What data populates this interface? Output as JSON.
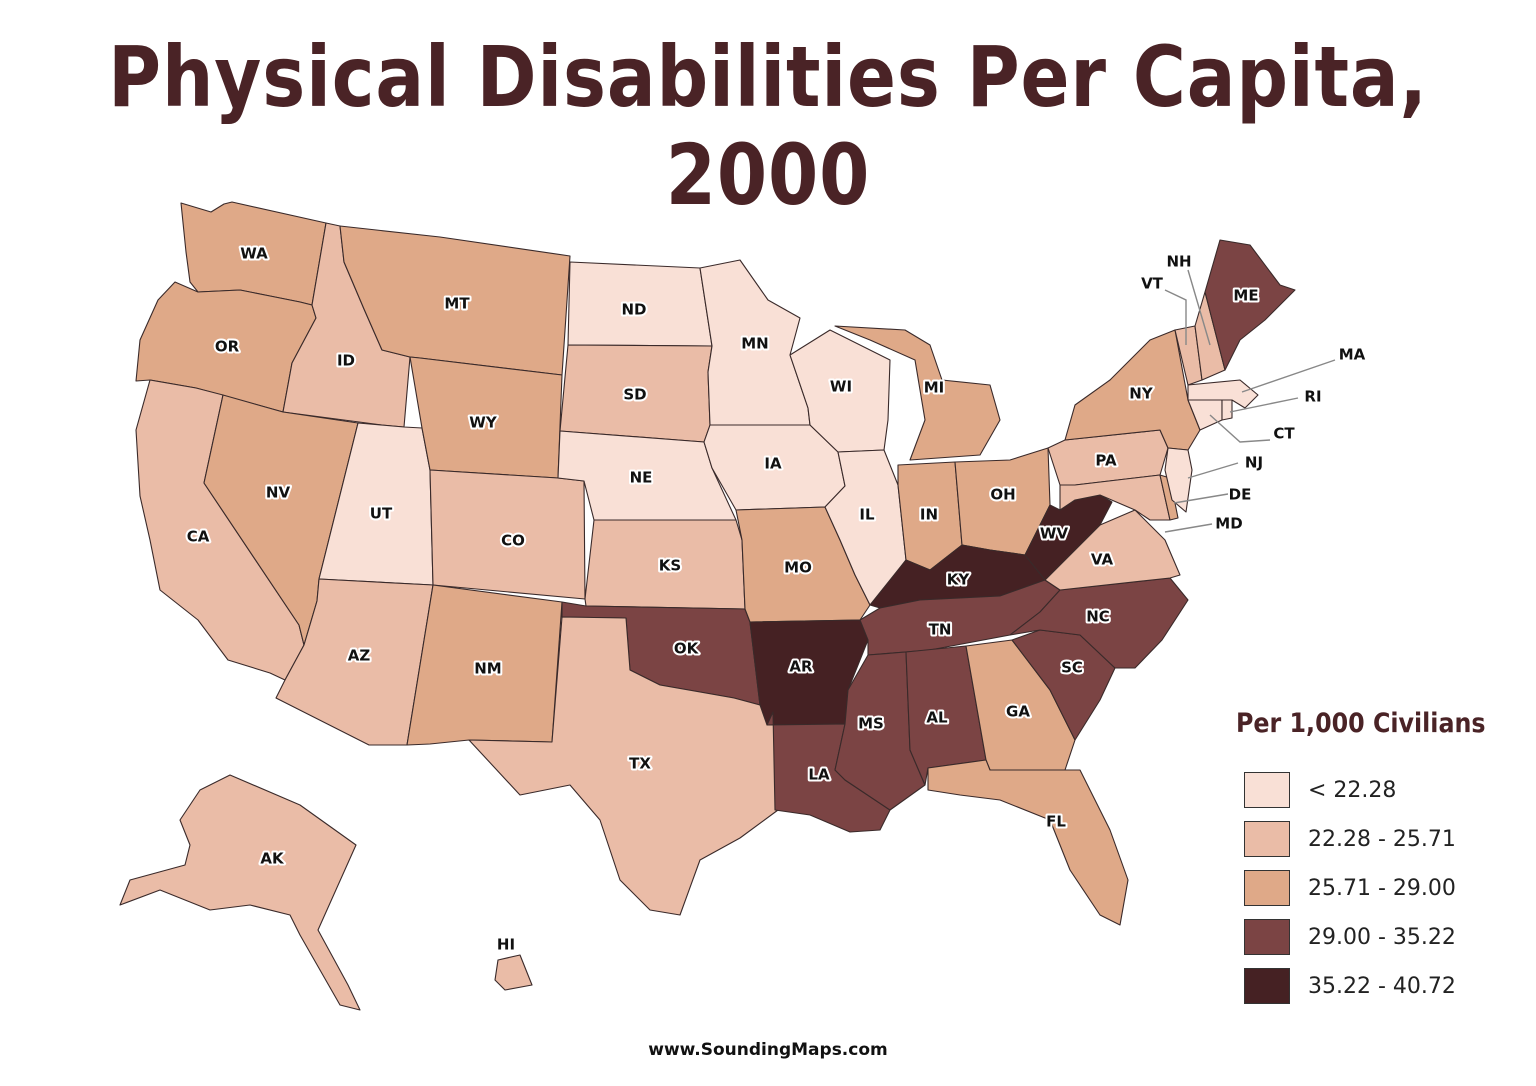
{
  "title": "Physical Disabilities Per Capita, 2000",
  "legend": {
    "title": "Per 1,000 Civilians",
    "classes": [
      {
        "label": "< 22.28",
        "color": "#f9e0d6"
      },
      {
        "label": "22.28 - 25.71",
        "color": "#eabca7"
      },
      {
        "label": "25.71 - 29.00",
        "color": "#dfa988"
      },
      {
        "label": "29.00 - 35.22",
        "color": "#7b4444"
      },
      {
        "label": "35.22 - 40.72",
        "color": "#452123"
      }
    ]
  },
  "states": {
    "WA": 2,
    "OR": 2,
    "CA": 1,
    "ID": 1,
    "NV": 2,
    "UT": 0,
    "AZ": 1,
    "MT": 2,
    "WY": 2,
    "CO": 1,
    "NM": 2,
    "ND": 0,
    "SD": 1,
    "NE": 0,
    "KS": 1,
    "OK": 3,
    "TX": 1,
    "MN": 0,
    "IA": 0,
    "MO": 2,
    "AR": 4,
    "LA": 3,
    "WI": 0,
    "IL": 0,
    "MI": 2,
    "IN": 2,
    "OH": 2,
    "KY": 4,
    "TN": 3,
    "MS": 3,
    "AL": 3,
    "GA": 2,
    "FL": 2,
    "SC": 3,
    "NC": 3,
    "VA": 1,
    "WV": 4,
    "PA": 1,
    "NY": 2,
    "ME": 3,
    "VT": 1,
    "NH": 1,
    "MA": 0,
    "RI": 0,
    "CT": 0,
    "NJ": 0,
    "DE": 2,
    "MD": 1,
    "AK": 1,
    "HI": 1
  },
  "website": "www.SoundingMaps.com"
}
